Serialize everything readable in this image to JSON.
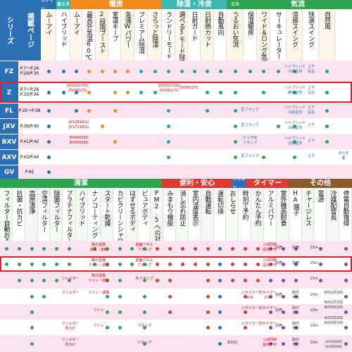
{
  "colors": {
    "series_blue": "#2c6fb4",
    "row_pink": "#fbe4ef",
    "row_white": "#ffffff",
    "hdr_blue": "#2c6fb4",
    "hdr_orange": "#f08a1c",
    "hdr_teal": "#3bb6b0",
    "hdr_green": "#2fa44f",
    "hdr_red": "#d93b33",
    "hdr_brown": "#8a5a2b",
    "dot_blue": "#2c6fb4",
    "dot_orange": "#f08a1c",
    "dot_teal": "#1fa8a0",
    "dot_green": "#2fa44f",
    "dot_purple": "#7c4aa8",
    "dot_red": "#d93b33",
    "highlight": "#e0202a"
  },
  "top": {
    "corner": {
      "series_label": "シリーズ",
      "page_label": "掲載ページ"
    },
    "groups": [
      {
        "label": "センサー"
      },
      {
        "label": "省エネ"
      },
      {
        "label": "暖房"
      },
      {
        "label": "除湿・冷房"
      },
      {
        "label": "エネ"
      },
      {
        "label": "気流"
      }
    ],
    "columns": [
      "ムーアイ",
      "ハイブリッド",
      "ムーアイ",
      "最高外気温60℃",
      "2段階ブースト",
      "室温キープ",
      "急速Wパワー",
      "プレミアム除湿",
      "さらっと除湿",
      "ランドリーモード",
      "選べる3モード除湿",
      "日射ガード",
      "日射熱カット",
      "自動風向",
      "うるおい気流",
      "保湿暖房",
      "ワイド＆ロング気流",
      "サーキュレーター",
      "涼感スイング",
      "快適スイング",
      "自然風"
    ],
    "rows": [
      {
        "series": "FZ",
        "pages": [
          "P.7〜P.26",
          "P.29/P.30"
        ]
      },
      {
        "series": "Z",
        "pages": [
          "P.7〜P.26",
          "P.33/P.34"
        ]
      },
      {
        "series": "FL",
        "pages": [
          "P.35〜P.38"
        ]
      },
      {
        "series": "JXV",
        "pages": [
          "P.39/P.40"
        ]
      },
      {
        "series": "BXV",
        "pages": [
          "P.41/P.42"
        ]
      },
      {
        "series": "AXV",
        "pages": [
          "P.43/P.44"
        ]
      },
      {
        "series": "GV",
        "pages": [
          "P.45"
        ]
      }
    ],
    "notes": {
      "fz_hybrid": "ハイブリッド",
      "fz_updown": "上下",
      "fz_left": "左右",
      "z_model1": "ZXV2217(S)",
      "z_model2": "ZXV9017S",
      "z_model3": "ZXV2217(S)",
      "z_model4": "ZXV9017S",
      "fl_flap": "匠フラップ",
      "jxv_model1": "JXV2816(S)",
      "jxv_model2": "JXV7116(S)",
      "bxv_model1": "BXV4016S",
      "bxv_model2": "BXV5616S",
      "bxv_flap": "ビッグW",
      "bxv_flap2": "フラップ",
      "axv_yura": "ゆらぎ",
      "axv_kaze": "風",
      "hybrid_cool": "冷房並列",
      "hybrid_warm": "暖房並列"
    }
  },
  "bottom": {
    "groups": [
      {
        "label": "清潔"
      },
      {
        "label": "便利・安心"
      },
      {
        "label": "リモコン"
      },
      {
        "label": "タイマー"
      },
      {
        "label": "その他"
      }
    ],
    "columns": [
      "フィルター自動おそうじメカ",
      "抗菌・抗カビ",
      "高原清浄",
      "空清フィルター",
      "除菌フィルター",
      "プラチナフィルター",
      "ハイブリッド",
      "ナノコーティング",
      "スタート乾燥",
      "カビクリーンシャワー",
      "はずせるボディ",
      "ピュアボディ",
      "PM2.5への対応",
      "みまもり機能",
      "消し忘れ防止",
      "室内温度表示",
      "自動運転",
      "運転切換",
      "おしらせ",
      "時刻で予約",
      "かんたん予約",
      "アルミパワー",
      "室外機高耐食",
      "HA端子",
      "チャージレス",
      "電源",
      "冷媒配管長",
      "停電自動復帰"
    ],
    "row_notes": {
      "r1_a": "救の送風",
      "r1_b": "送風・運転",
      "r1_c": "前面パネル",
      "r1_d": "フラップ",
      "r1_e": "別売",
      "r1_f": "入切同時",
      "r1_g": "設定不可",
      "r1_h": "別売",
      "r1_len": "15m",
      "r2_a": "救の送風",
      "r2_b": "ファン・運転",
      "r2_c": "前面パネル",
      "r2_d": "フラップ",
      "r2_e": "別売",
      "r2_f": "入切同時",
      "r2_g": "設定不可",
      "r2_h": "別売",
      "r2_len": "15m",
      "r3_a": "フィルター",
      "r3_b": "救の送風",
      "r3_c": "ファン・運転",
      "r3_d": "外フラップ",
      "r3_e": "15m",
      "r4_a": "フィルター",
      "r4_b": "ファン・通風",
      "r4_c": "入タイマー",
      "r4_d": "切タイマー",
      "r4_e": "のみ",
      "r4_f": "のみ",
      "r4_g": "別売",
      "r4_h": "取付",
      "r4_i": "不可",
      "r4_len": "15m",
      "r4_model": "BXV2516S",
      "r5_a": "ファン",
      "r5_b": "入タイマー",
      "r5_c": "切タイマー",
      "r5_d": "別売",
      "r5_e": "取付",
      "r5_f": "不可",
      "r5_len": "10m",
      "r5_model1": "BXV2516S",
      "r5_model2": "BXV5616S",
      "r6_a": "フィルター",
      "r6_b": "防カビ",
      "r6_c": "フラップ",
      "r6_d": "ファン",
      "r6_e": "入タイマー",
      "r6_f": "切タイマー",
      "r6_g": "別売",
      "r6_h": "取付",
      "r6_i": "不可",
      "r6_len": "10m",
      "r6_model1": "AXV2516S",
      "r6_model2": "AXV5616S",
      "r7_a": "フィルター",
      "r7_b": "防カビ",
      "r7_c": "フラップ",
      "r7_d": "非対応",
      "r7_e": "入切同時",
      "r7_f": "設定不可",
      "r7_g": "取付",
      "r7_h": "不可",
      "r7_len": "10m",
      "r7_model1": "GV2816S",
      "r7_model2": "GV5616S"
    }
  }
}
